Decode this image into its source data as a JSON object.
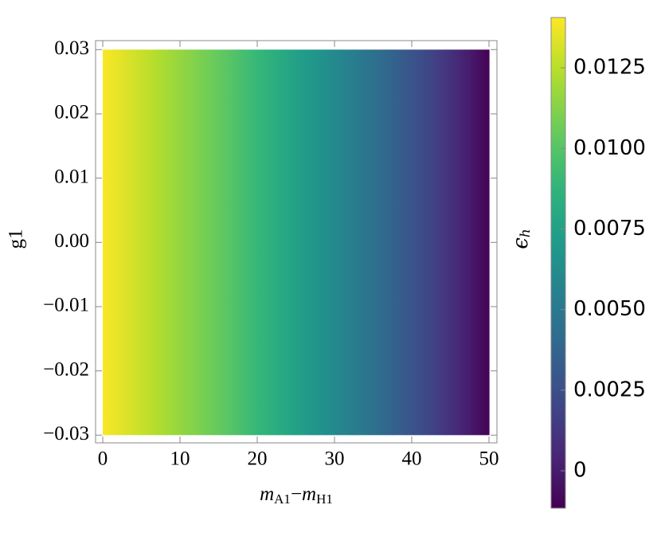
{
  "chart_data": {
    "type": "heatmap",
    "x": [
      0,
      5,
      10,
      15,
      20,
      25,
      30,
      35,
      40,
      45,
      50
    ],
    "y": [
      -0.03,
      0.03
    ],
    "values": [
      0.014,
      0.0128,
      0.0116,
      0.0104,
      0.009,
      0.0075,
      0.006,
      0.0045,
      0.0028,
      0.001,
      -0.0011
    ],
    "colormap": "viridis",
    "xlim": [
      -0.93,
      51.03
    ],
    "ylim": [
      -0.0312,
      0.0314
    ],
    "xticks": [
      0,
      10,
      20,
      30,
      40,
      50
    ],
    "yticks": [
      {
        "value": -0.03,
        "label": "−0.03"
      },
      {
        "value": -0.02,
        "label": "−0.02"
      },
      {
        "value": -0.01,
        "label": "−0.01"
      },
      {
        "value": 0,
        "label": "0.00"
      },
      0.01,
      0.02,
      0.03
    ],
    "xlabel_parts": [
      "m",
      "A1",
      "−",
      "m",
      "H1"
    ],
    "ylabel": "g1",
    "colorbar_label_parts": [
      "ϵ",
      "h"
    ],
    "clim": [
      -0.00116,
      0.01406
    ],
    "cticks": [
      0,
      0.0025,
      {
        "value": 0.005,
        "label": "0.0050"
      },
      0.0075,
      {
        "value": 0.01,
        "label": "0.0100"
      },
      0.0125
    ]
  }
}
